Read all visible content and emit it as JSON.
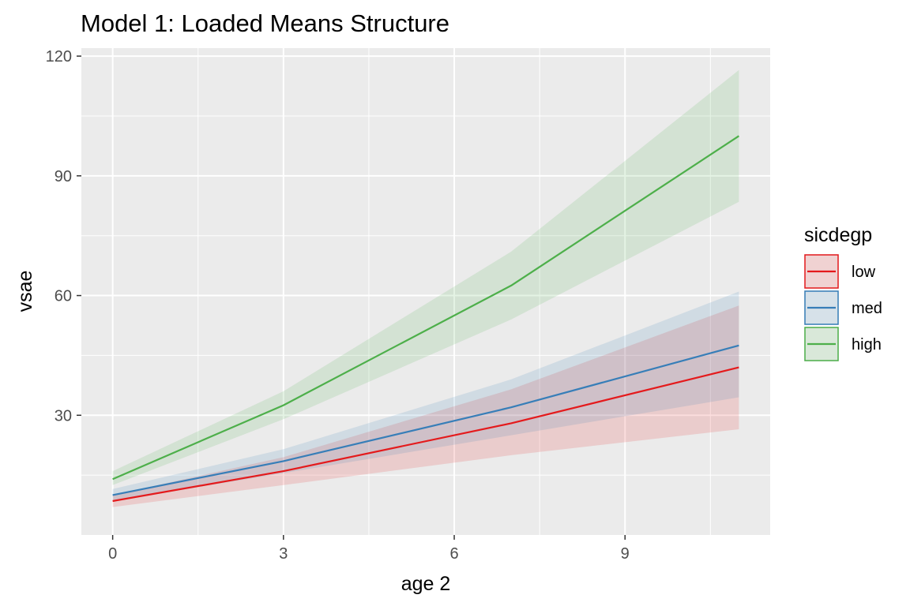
{
  "chart_data": {
    "type": "line",
    "title": "Model 1: Loaded Means Structure",
    "xlabel": "age 2",
    "ylabel": "vsae",
    "xlim": [
      -0.55,
      11.55
    ],
    "ylim": [
      0,
      122
    ],
    "x_ticks": [
      0,
      3,
      6,
      9
    ],
    "y_ticks": [
      30,
      60,
      90,
      120
    ],
    "x": [
      0,
      3,
      7,
      11
    ],
    "grid": true,
    "legend": {
      "title": "sicdegp",
      "placement": "right"
    },
    "series": [
      {
        "name": "low",
        "color": "#E41A1C",
        "values": [
          8.5,
          16.0,
          28.0,
          42.0
        ],
        "lower": [
          7.0,
          12.5,
          20.0,
          26.5
        ],
        "upper": [
          10.0,
          19.5,
          36.5,
          57.5
        ]
      },
      {
        "name": "med",
        "color": "#377EB8",
        "values": [
          10.0,
          18.5,
          32.0,
          47.5
        ],
        "lower": [
          8.5,
          15.5,
          25.0,
          34.5
        ],
        "upper": [
          11.5,
          21.5,
          39.0,
          61.0
        ]
      },
      {
        "name": "high",
        "color": "#4DAF4A",
        "values": [
          14.0,
          32.5,
          62.5,
          100.0
        ],
        "lower": [
          12.5,
          29.0,
          54.0,
          83.5
        ],
        "upper": [
          16.0,
          36.0,
          71.0,
          116.5
        ]
      }
    ]
  }
}
